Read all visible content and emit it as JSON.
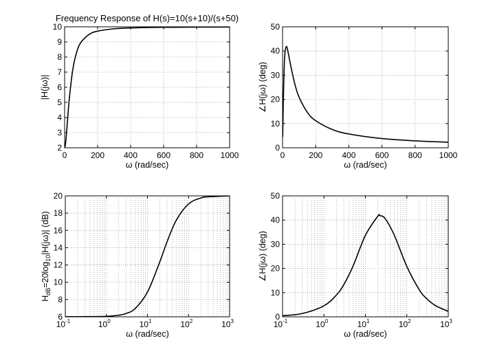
{
  "chart_data": [
    {
      "type": "line",
      "title": "Frequency Response of H(s)=10(s+10)/(s+50)",
      "xlabel": "ω (rad/sec)",
      "ylabel": "|H(jω)|",
      "xscale": "linear",
      "xlim": [
        0,
        1000
      ],
      "ylim": [
        2,
        10
      ],
      "xticks": [
        0,
        200,
        400,
        600,
        800,
        1000
      ],
      "yticks": [
        2,
        3,
        4,
        5,
        6,
        7,
        8,
        9,
        10
      ],
      "grid": true,
      "series": [
        {
          "name": "|H(jω)|",
          "x": [
            0,
            5,
            10,
            20,
            30,
            50,
            75,
            100,
            150,
            200,
            300,
            400,
            600,
            1000
          ],
          "y": [
            2,
            2.225,
            2.774,
            4.152,
            5.423,
            7.211,
            8.394,
            8.989,
            9.508,
            9.713,
            9.869,
            9.925,
            9.966,
            9.988
          ]
        }
      ]
    },
    {
      "type": "line",
      "title": "",
      "xlabel": "ω (rad/sec)",
      "ylabel": "∠H(jω) (deg)",
      "xscale": "linear",
      "xlim": [
        0,
        1000
      ],
      "ylim": [
        0,
        50
      ],
      "xticks": [
        0,
        200,
        400,
        600,
        800,
        1000
      ],
      "yticks": [
        0,
        10,
        20,
        30,
        40,
        50
      ],
      "grid": true,
      "series": [
        {
          "name": "∠H(jω)",
          "x": [
            1,
            5,
            10,
            15,
            22.36,
            30,
            50,
            75,
            100,
            150,
            200,
            300,
            400,
            600,
            800,
            1000
          ],
          "y": [
            4.57,
            20.86,
            33.69,
            39.61,
            41.81,
            40.61,
            33.69,
            26.1,
            20.85,
            14.62,
            11.18,
            7.55,
            5.7,
            3.81,
            2.86,
            2.29
          ]
        }
      ]
    },
    {
      "type": "line",
      "title": "",
      "xlabel": "ω (rad/sec)",
      "ylabel": {
        "main": "H",
        "sub1": "dB",
        "mid": "=20log",
        "sub2": "10",
        "end": "|H(jω)| (dB)"
      },
      "xscale": "log",
      "xlim": [
        0.1,
        1000
      ],
      "ylim": [
        6,
        20
      ],
      "xticks": [
        {
          "base": "10",
          "exp": "-1"
        },
        {
          "base": "10",
          "exp": "0"
        },
        {
          "base": "10",
          "exp": "1"
        },
        {
          "base": "10",
          "exp": "2"
        },
        {
          "base": "10",
          "exp": "3"
        }
      ],
      "yticks": [
        6,
        8,
        10,
        12,
        14,
        16,
        18,
        20
      ],
      "grid": true,
      "series": [
        {
          "name": "H_dB",
          "x": [
            0.1,
            0.3,
            1,
            2,
            3,
            5,
            10,
            20,
            30,
            50,
            100,
            200,
            300,
            1000
          ],
          "y": [
            6.02,
            6.024,
            6.06,
            6.19,
            6.38,
            6.95,
            8.86,
            12.37,
            14.69,
            17.16,
            19.07,
            19.75,
            19.89,
            19.99
          ]
        }
      ]
    },
    {
      "type": "line",
      "title": "",
      "xlabel": "ω (rad/sec)",
      "ylabel": "∠H(jω) (deg)",
      "xscale": "log",
      "xlim": [
        0.1,
        1000
      ],
      "ylim": [
        0,
        50
      ],
      "xticks": [
        {
          "base": "10",
          "exp": "-1"
        },
        {
          "base": "10",
          "exp": "0"
        },
        {
          "base": "10",
          "exp": "1"
        },
        {
          "base": "10",
          "exp": "2"
        },
        {
          "base": "10",
          "exp": "3"
        }
      ],
      "yticks": [
        0,
        10,
        20,
        30,
        40,
        50
      ],
      "grid": true,
      "series": [
        {
          "name": "∠H(jω)",
          "x": [
            0.1,
            0.3,
            1,
            2,
            3,
            5,
            10,
            20,
            22.36,
            30,
            50,
            100,
            200,
            300,
            500,
            1000
          ],
          "y": [
            0.46,
            1.38,
            4.57,
            9.02,
            13.27,
            20.86,
            33.69,
            41.63,
            41.81,
            40.61,
            33.69,
            20.85,
            11.18,
            7.55,
            4.56,
            2.29
          ]
        }
      ]
    }
  ]
}
